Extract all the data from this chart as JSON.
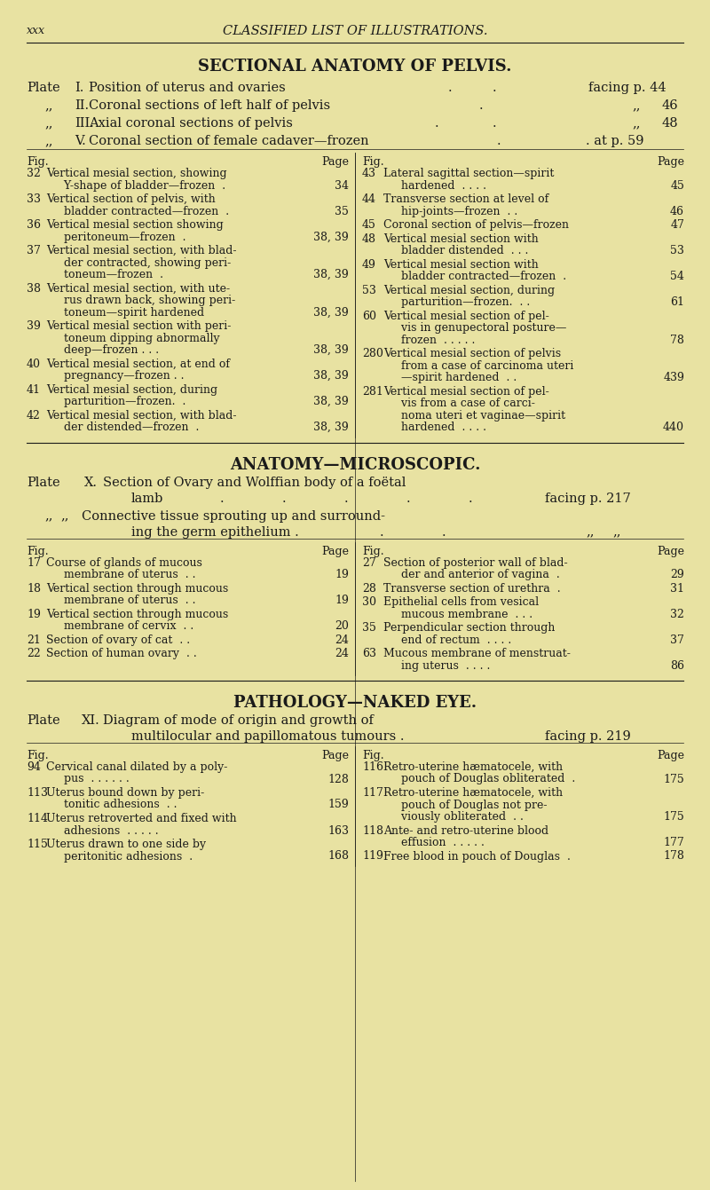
{
  "bg_color": "#e8e2a2",
  "text_color": "#1a1a1a",
  "page_header_left": "xxx",
  "page_header_center": "CLASSIFIED LIST OF ILLUSTRATIONS.",
  "section1_title": "SECTIONAL ANATOMY OF PELVIS.",
  "section2_title": "ANATOMY—MICROSCOPIC.",
  "section3_title": "PATHOLOGY—NAKED EYE."
}
